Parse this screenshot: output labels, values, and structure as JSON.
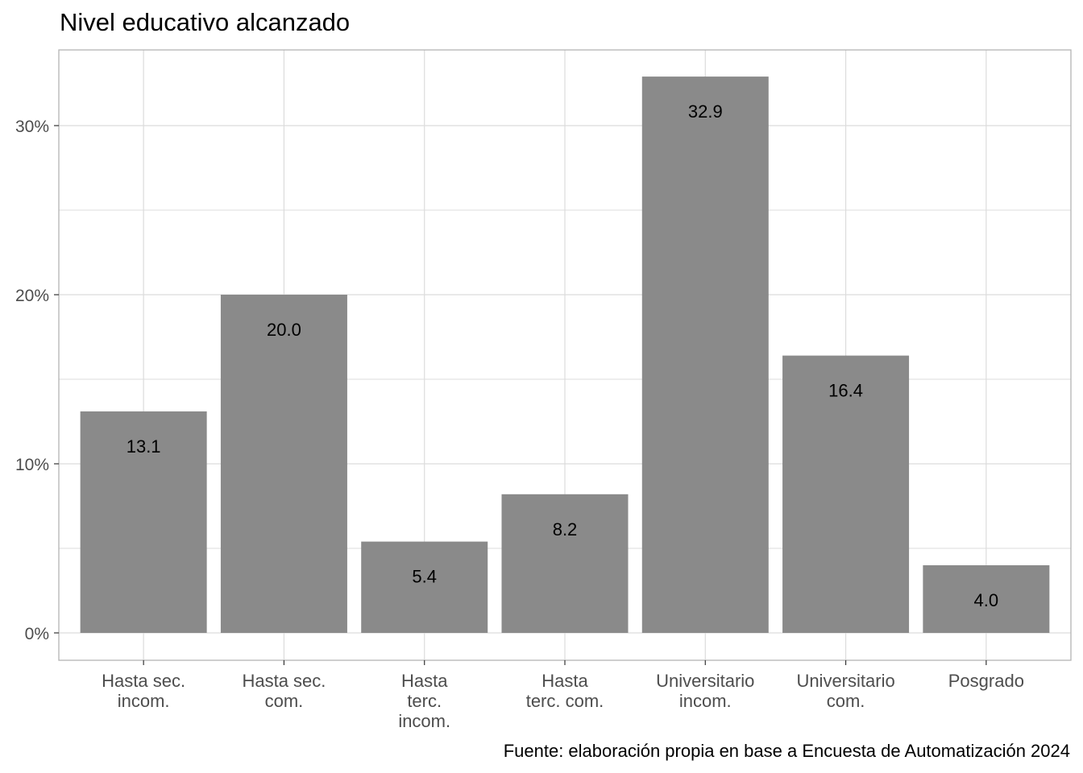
{
  "chart_data": {
    "type": "bar",
    "title": "Nivel educativo alcanzado",
    "caption": "Fuente: elaboración propia en base a Encuesta de Automatización 2024",
    "categories": [
      [
        "Hasta sec.",
        "incom."
      ],
      [
        "Hasta sec.",
        "com."
      ],
      [
        "Hasta",
        "terc.",
        "incom."
      ],
      [
        "Hasta",
        "terc. com."
      ],
      [
        "Universitario",
        "incom."
      ],
      [
        "Universitario",
        "com."
      ],
      [
        "Posgrado"
      ]
    ],
    "values": [
      13.1,
      20.0,
      5.4,
      8.2,
      32.9,
      16.4,
      4.0
    ],
    "value_labels": [
      "13.1",
      "20.0",
      "5.4",
      "8.2",
      "32.9",
      "16.4",
      "4.0"
    ],
    "ylim": [
      0,
      34.5
    ],
    "yticks": [
      0,
      10,
      20,
      30
    ],
    "ytick_labels": [
      "0%",
      "10%",
      "20%",
      "30%"
    ],
    "grid": true,
    "legend": "none",
    "colors": {
      "bar": "#8a8a8a",
      "grid": "#dcdcdc",
      "panel_border": "#b3b3b3",
      "axis_text": "#4d4d4d"
    }
  }
}
